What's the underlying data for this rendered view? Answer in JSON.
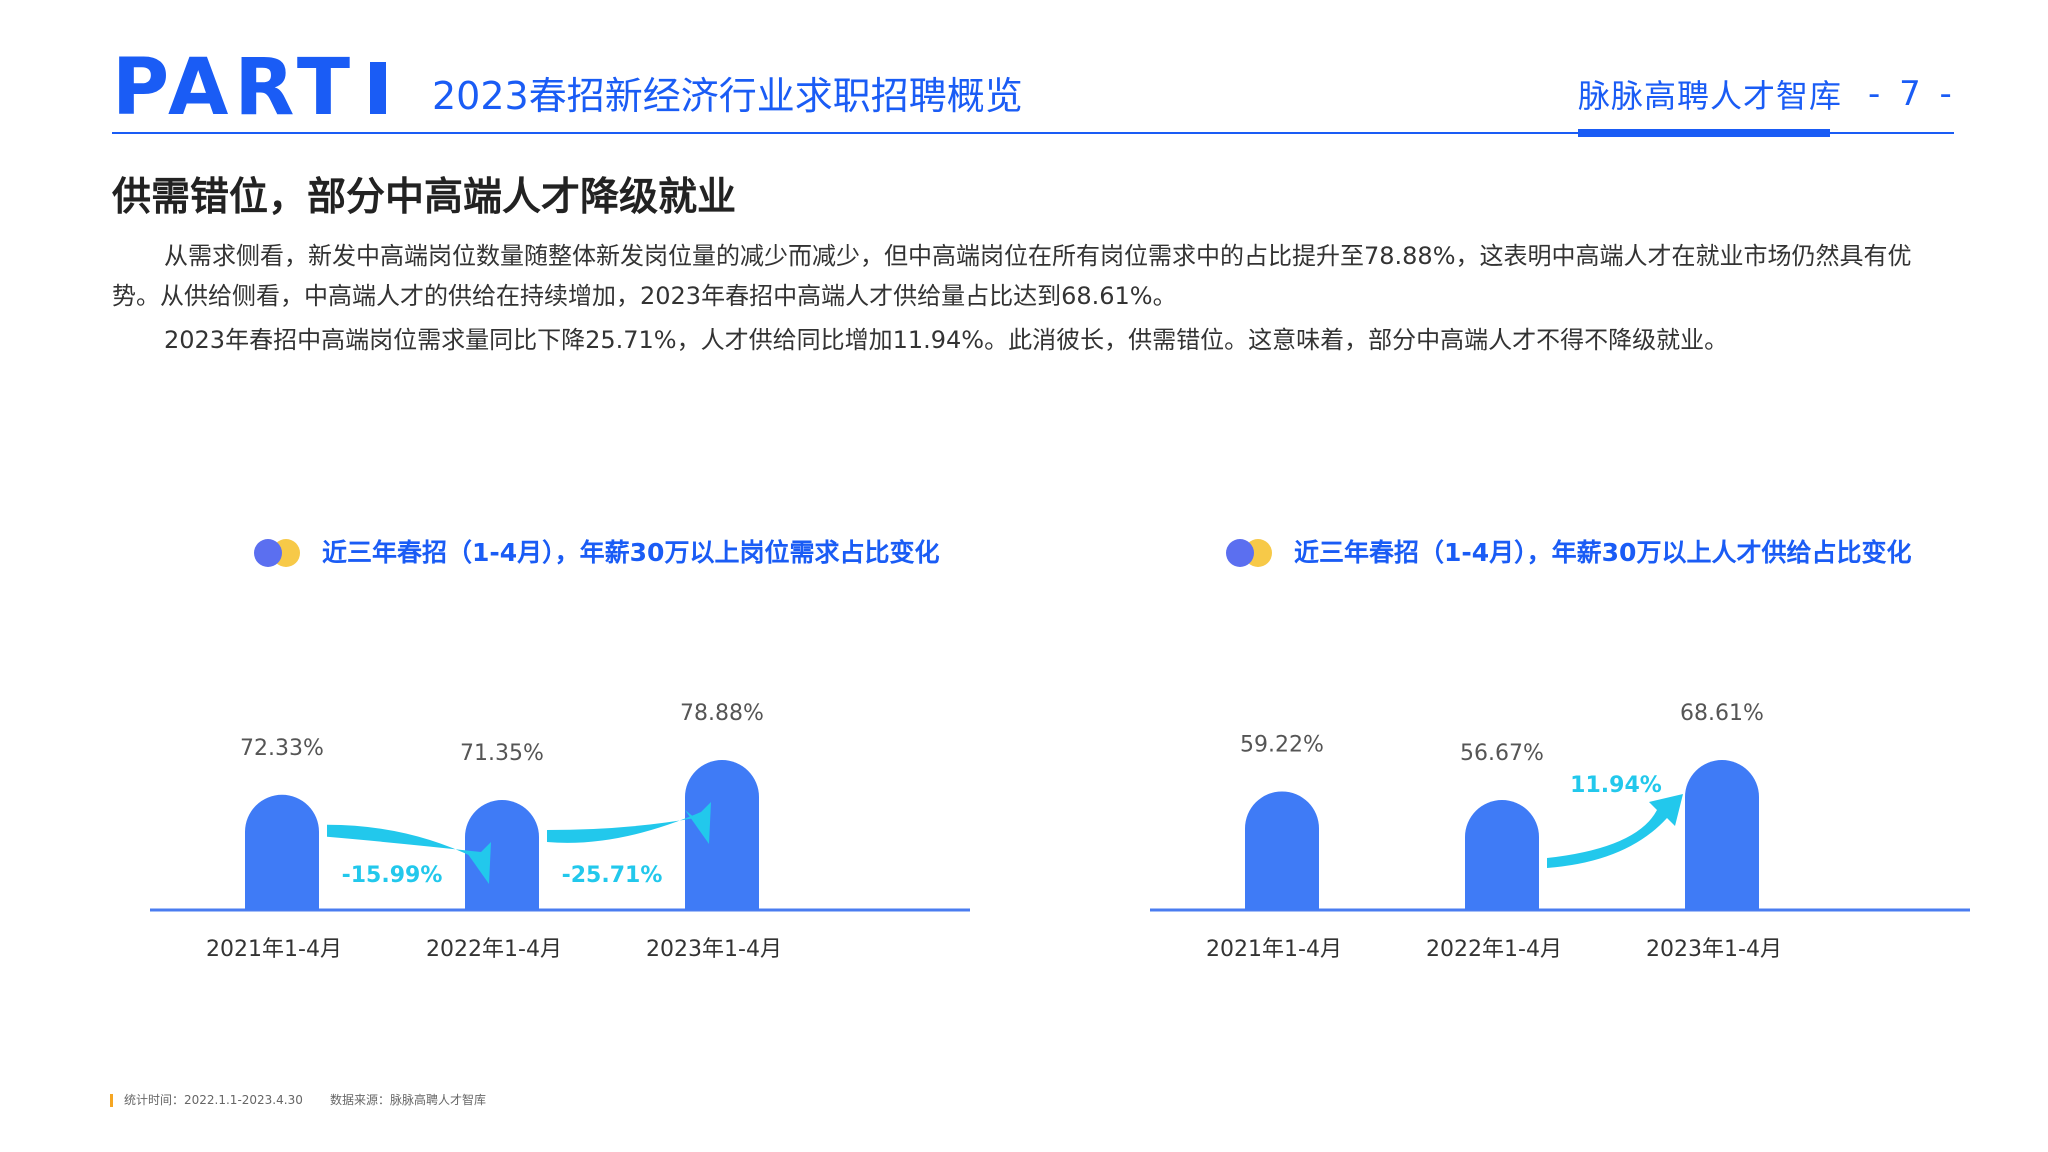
{
  "header": {
    "part": "PART",
    "section_title": "2023春招新经济行业求职招聘概览",
    "brand": "脉脉高聘人才智库",
    "page_number": "- 7 -"
  },
  "heading": "供需错位，部分中高端人才降级就业",
  "paragraphs": [
    "从需求侧看，新发中高端岗位数量随整体新发岗位量的减少而减少，但中高端岗位在所有岗位需求中的占比提升至78.88%，这表明中高端人才在就业市场仍然具有优势。从供给侧看，中高端人才的供给在持续增加，2023年春招中高端人才供给量占比达到68.61%。",
    "2023年春招中高端岗位需求量同比下降25.71%，人才供给同比增加11.94%。此消彼长，供需错位。这意味着，部分中高端人才不得不降级就业。"
  ],
  "chart_data": [
    {
      "type": "bar",
      "title": "近三年春招（1-4月），年薪30万以上岗位需求占比变化",
      "categories": [
        "2021年1-4月",
        "2022年1-4月",
        "2023年1-4月"
      ],
      "values": [
        72.33,
        71.35,
        78.88
      ],
      "value_labels": [
        "72.33%",
        "71.35%",
        "78.88%"
      ],
      "changes": [
        "-15.99%",
        "-25.71%"
      ],
      "colors": {
        "bar": "#3f7bf6",
        "arrow": "#22c8ec",
        "axis": "#4a7cf0"
      }
    },
    {
      "type": "bar",
      "title": "近三年春招（1-4月），年薪30万以上人才供给占比变化",
      "categories": [
        "2021年1-4月",
        "2022年1-4月",
        "2023年1-4月"
      ],
      "values": [
        59.22,
        56.67,
        68.61
      ],
      "value_labels": [
        "59.22%",
        "56.67%",
        "68.61%"
      ],
      "changes": [
        "11.94%"
      ],
      "colors": {
        "bar": "#3f7bf6",
        "arrow": "#22c8ec",
        "axis": "#4a7cf0"
      }
    }
  ],
  "footer": {
    "stat_time": "统计时间：2022.1.1-2023.4.30",
    "data_source": "数据来源：脉脉高聘人才智库"
  }
}
